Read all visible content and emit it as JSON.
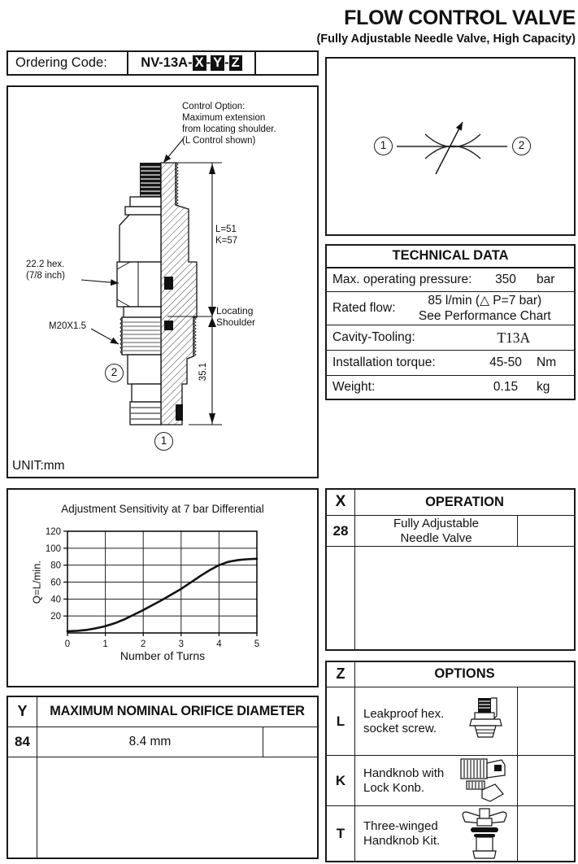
{
  "header": {
    "title": "FLOW CONTROL VALVE",
    "subtitle": "(Fully Adjustable Needle Valve, High Capacity)"
  },
  "ordering": {
    "label": "Ordering Code:",
    "code_prefix": "NV-13A",
    "separator": "-",
    "code_x": "X",
    "code_y": "Y",
    "code_z": "Z"
  },
  "drawing": {
    "control_option": [
      "Control Option:",
      "Maximum extension",
      "from locating shoulder.",
      "(L Control shown)"
    ],
    "hex_label": [
      "22.2 hex.",
      "(7/8 inch)"
    ],
    "thread_label": "M20X1.5",
    "dim_l": "L=51",
    "dim_k": "K=57",
    "locating_label": [
      "Locating",
      "Shoulder"
    ],
    "dim_height": "35.1",
    "port_1": "1",
    "port_2": "2",
    "unit": "UNIT:mm"
  },
  "symbol": {
    "port_1": "1",
    "port_2": "2"
  },
  "technical_data": {
    "title": "TECHNICAL DATA",
    "rows": [
      {
        "label": "Max. operating pressure:",
        "value": "350",
        "unit": "bar"
      },
      {
        "label": "Rated flow:",
        "value": "85 l/min (△ P=7 bar)",
        "value_note": "See Performance Chart",
        "unit": ""
      },
      {
        "label": "Cavity-Tooling:",
        "value": "T13A",
        "unit": ""
      },
      {
        "label": "Installation torque:",
        "value": "45-50",
        "unit": "Nm"
      },
      {
        "label": "Weight:",
        "value": "0.15",
        "unit": "kg"
      }
    ]
  },
  "chart_data": {
    "type": "line",
    "title": "Adjustment Sensitivity at 7 bar Differential",
    "xlabel": "Number of Turns",
    "ylabel": "Q=L/min.",
    "xlim": [
      0,
      5
    ],
    "ylim": [
      0,
      120
    ],
    "xticks": [
      0,
      1,
      2,
      3,
      4,
      5
    ],
    "yticks": [
      20,
      40,
      60,
      80,
      100,
      120
    ],
    "grid": true,
    "legend": false,
    "series": [
      {
        "name": "Flow vs number of turns",
        "x": [
          0,
          0.25,
          0.5,
          0.75,
          1,
          1.25,
          1.5,
          1.75,
          2,
          2.25,
          2.5,
          2.75,
          3,
          3.25,
          3.5,
          3.75,
          4,
          4.25,
          4.5,
          4.75,
          5
        ],
        "y": [
          2,
          2.5,
          3.5,
          5.5,
          8,
          11.5,
          16,
          21.5,
          27,
          33,
          39,
          45.5,
          52,
          59.5,
          67,
          74,
          80,
          84,
          86,
          87,
          87.5
        ]
      }
    ]
  },
  "operation_table": {
    "code_header": "X",
    "title": "OPERATION",
    "rows": [
      {
        "code": "28",
        "lines": [
          "Fully Adjustable",
          "Needle Valve"
        ]
      }
    ]
  },
  "orifice_table": {
    "code_header": "Y",
    "title": "MAXIMUM NOMINAL ORIFICE DIAMETER",
    "rows": [
      {
        "code": "84",
        "value": "8.4 mm"
      }
    ]
  },
  "options_table": {
    "code_header": "Z",
    "title": "OPTIONS",
    "rows": [
      {
        "code": "L",
        "lines": [
          "Leakproof hex.",
          "socket screw."
        ]
      },
      {
        "code": "K",
        "lines": [
          "Handknob with",
          "Lock Konb."
        ]
      },
      {
        "code": "T",
        "lines": [
          "Three-winged",
          "Handknob Kit."
        ]
      }
    ]
  }
}
